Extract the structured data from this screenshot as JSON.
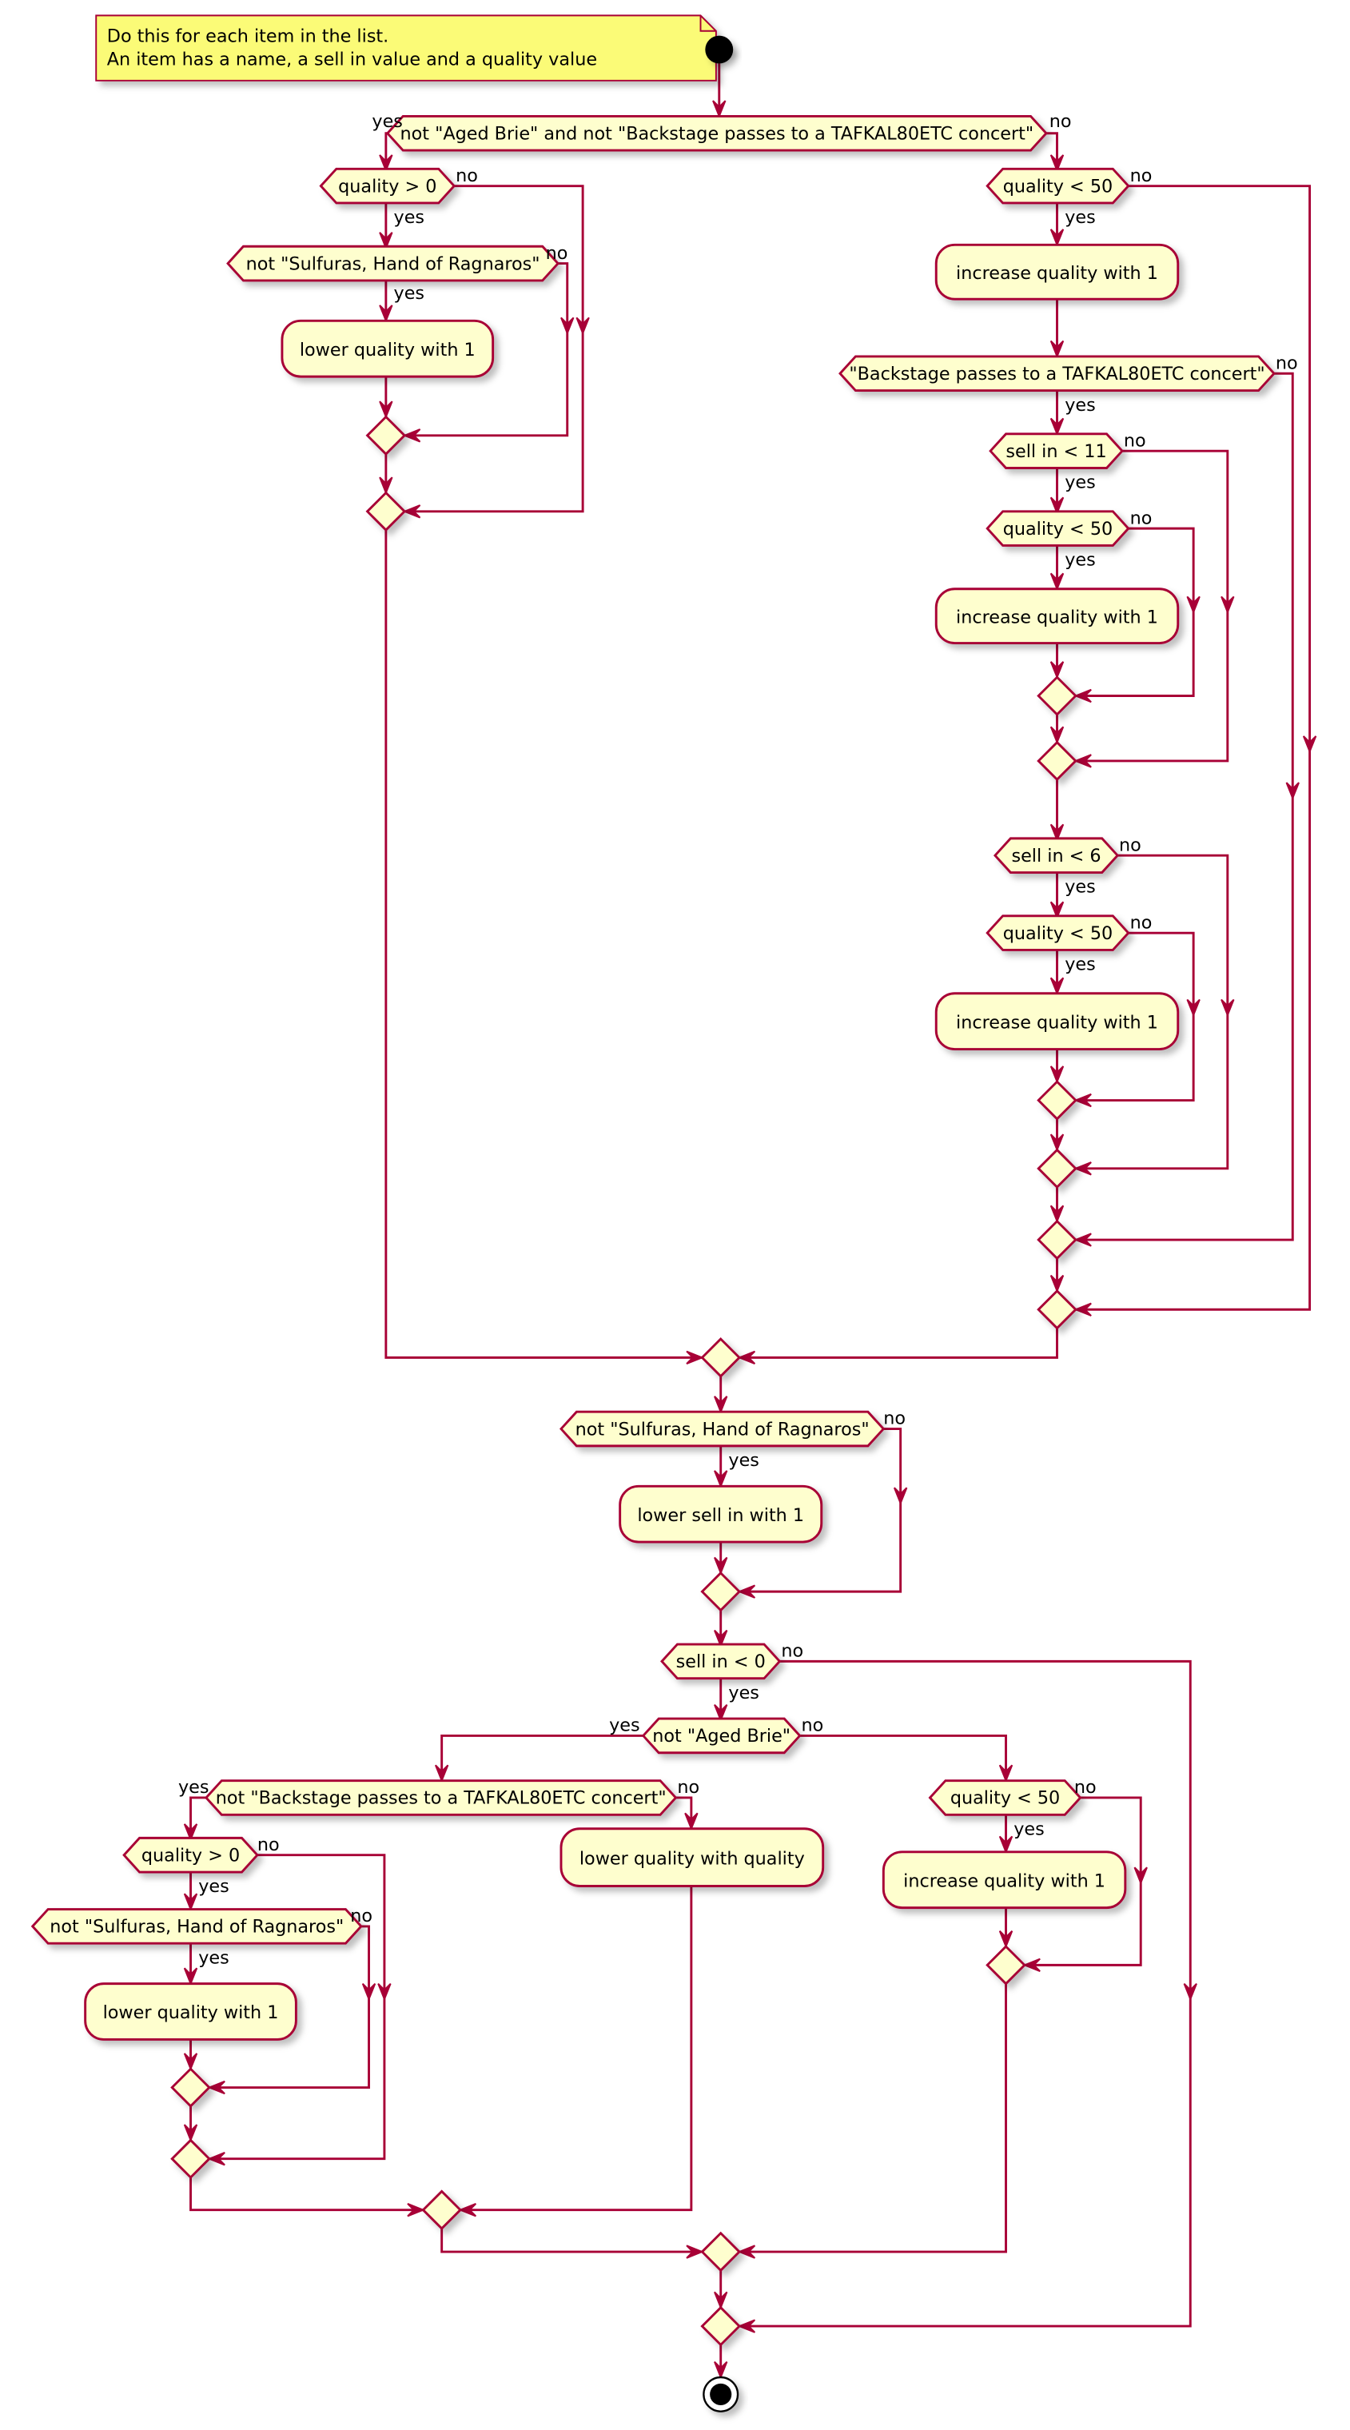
{
  "note": {
    "lines": [
      "Do this for each item in the list.",
      "An item has a name, a sell in value and a quality value"
    ]
  },
  "labels": {
    "yes": "yes",
    "no": "no"
  },
  "decisions": {
    "d1": "not \"Aged Brie\" and not \"Backstage passes to a TAFKAL80ETC concert\"",
    "d2": "quality > 0",
    "d3": "not \"Sulfuras, Hand of Ragnaros\"",
    "d4": "quality < 50",
    "d5": "\"Backstage passes to a TAFKAL80ETC concert\"",
    "d6": "sell in < 11",
    "d7": "quality < 50",
    "d8": "sell in < 6",
    "d9": "quality < 50",
    "d10": "not \"Sulfuras, Hand of Ragnaros\"",
    "d11": "sell in < 0",
    "d12": "not \"Aged Brie\"",
    "d13": "not \"Backstage passes to a TAFKAL80ETC concert\"",
    "d14": "quality > 0",
    "d15": "not \"Sulfuras, Hand of Ragnaros\"",
    "d16": "quality < 50"
  },
  "actions": {
    "a1": "lower quality with 1",
    "a2": "increase quality with 1",
    "a3": "increase quality with 1",
    "a4": "increase quality with 1",
    "a5": "lower sell in with 1",
    "a6": "lower quality with 1",
    "a7": "lower quality with quality",
    "a8": "increase quality with 1"
  },
  "colors": {
    "node_fill": "#FEFECE",
    "stroke": "#A80036",
    "note_fill": "#FBFB77",
    "start_end": "#000000"
  }
}
